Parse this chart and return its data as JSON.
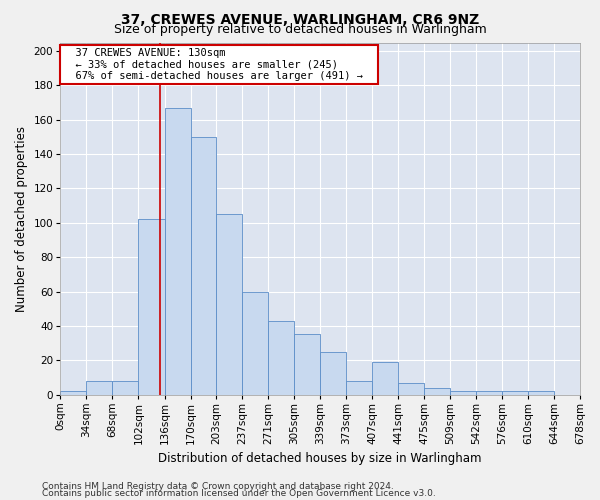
{
  "title": "37, CREWES AVENUE, WARLINGHAM, CR6 9NZ",
  "subtitle": "Size of property relative to detached houses in Warlingham",
  "xlabel": "Distribution of detached houses by size in Warlingham",
  "ylabel": "Number of detached properties",
  "annotation_title": "37 CREWES AVENUE: 130sqm",
  "annotation_line1": "← 33% of detached houses are smaller (245)",
  "annotation_line2": "67% of semi-detached houses are larger (491) →",
  "footer1": "Contains HM Land Registry data © Crown copyright and database right 2024.",
  "footer2": "Contains public sector information licensed under the Open Government Licence v3.0.",
  "bin_labels": [
    "0sqm",
    "34sqm",
    "68sqm",
    "102sqm",
    "136sqm",
    "170sqm",
    "203sqm",
    "237sqm",
    "271sqm",
    "305sqm",
    "339sqm",
    "373sqm",
    "407sqm",
    "441sqm",
    "475sqm",
    "509sqm",
    "542sqm",
    "576sqm",
    "610sqm",
    "644sqm",
    "678sqm"
  ],
  "bin_edges": [
    0,
    34,
    68,
    102,
    136,
    170,
    203,
    237,
    271,
    305,
    339,
    373,
    407,
    441,
    475,
    509,
    542,
    576,
    610,
    644,
    678
  ],
  "bar_heights": [
    2,
    8,
    8,
    102,
    167,
    150,
    105,
    60,
    43,
    35,
    25,
    8,
    19,
    7,
    4,
    2,
    2,
    2,
    2,
    0
  ],
  "bar_color": "#c8d9ef",
  "bar_edge_color": "#5b8dc8",
  "vline_color": "#cc0000",
  "vline_x": 130,
  "ylim": [
    0,
    205
  ],
  "yticks": [
    0,
    20,
    40,
    60,
    80,
    100,
    120,
    140,
    160,
    180,
    200
  ],
  "bg_color": "#dde4f0",
  "fig_color": "#f0f0f0",
  "annotation_box_color": "#ffffff",
  "annotation_box_edge": "#cc0000",
  "title_fontsize": 10,
  "subtitle_fontsize": 9,
  "axis_label_fontsize": 8.5,
  "tick_fontsize": 7.5,
  "annotation_fontsize": 7.5,
  "footer_fontsize": 6.5
}
